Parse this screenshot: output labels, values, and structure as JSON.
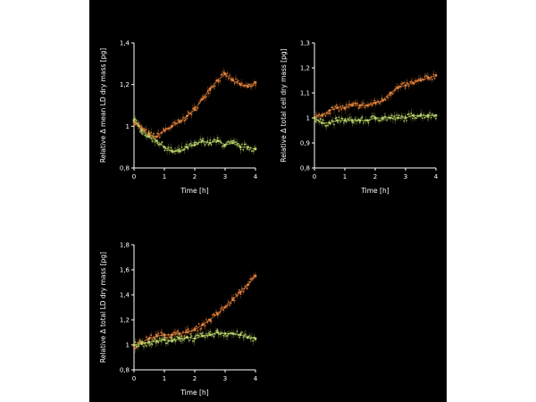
{
  "colors": {
    "background": "#000000",
    "foreground": "#ffffff",
    "treated": "#e8843c",
    "control": "#b8d468"
  },
  "chart_data": [
    {
      "type": "line",
      "title": "",
      "xlabel": "Time [h]",
      "ylabel": "Relative Δ mean LD dry mass  [pg]",
      "xlim": [
        0,
        4
      ],
      "ylim": [
        0.8,
        1.4
      ],
      "xticks": [
        "0",
        "1",
        "2",
        "3",
        "4"
      ],
      "yticks": [
        "0,8",
        "1",
        "1,2",
        "1,4"
      ],
      "ytick_values": [
        0.8,
        1.0,
        1.2,
        1.4
      ],
      "x": [
        0,
        0.25,
        0.5,
        0.75,
        1.0,
        1.25,
        1.5,
        1.75,
        2.0,
        2.25,
        2.5,
        2.75,
        3.0,
        3.25,
        3.5,
        3.75,
        4.0
      ],
      "series": [
        {
          "color_key": "treated",
          "values": [
            1.02,
            0.99,
            0.96,
            0.95,
            0.98,
            1.0,
            1.02,
            1.05,
            1.08,
            1.13,
            1.18,
            1.22,
            1.25,
            1.22,
            1.2,
            1.19,
            1.21
          ]
        },
        {
          "color_key": "control",
          "values": [
            1.03,
            0.98,
            0.95,
            0.93,
            0.9,
            0.88,
            0.88,
            0.9,
            0.91,
            0.93,
            0.92,
            0.93,
            0.91,
            0.92,
            0.9,
            0.9,
            0.89
          ]
        }
      ]
    },
    {
      "type": "line",
      "title": "",
      "xlabel": "Time [h]",
      "ylabel": "Relative Δ total cell dry mass  [pg]",
      "xlim": [
        0,
        4
      ],
      "ylim": [
        0.8,
        1.3
      ],
      "xticks": [
        "0",
        "1",
        "2",
        "3",
        "4"
      ],
      "yticks": [
        "0,8",
        "0,9",
        "1",
        "1,1",
        "1,2",
        "1,3"
      ],
      "ytick_values": [
        0.8,
        0.9,
        1.0,
        1.1,
        1.2,
        1.3
      ],
      "x": [
        0,
        0.25,
        0.5,
        0.75,
        1.0,
        1.25,
        1.5,
        1.75,
        2.0,
        2.25,
        2.5,
        2.75,
        3.0,
        3.25,
        3.5,
        3.75,
        4.0
      ],
      "series": [
        {
          "color_key": "treated",
          "values": [
            1.0,
            1.01,
            1.03,
            1.04,
            1.04,
            1.05,
            1.05,
            1.05,
            1.06,
            1.07,
            1.1,
            1.12,
            1.13,
            1.14,
            1.15,
            1.16,
            1.17
          ]
        },
        {
          "color_key": "control",
          "values": [
            1.0,
            0.98,
            0.98,
            0.99,
            0.99,
            0.99,
            0.99,
            0.99,
            1.0,
            1.0,
            1.0,
            1.0,
            1.0,
            1.01,
            1.01,
            1.01,
            1.01
          ]
        }
      ]
    },
    {
      "type": "line",
      "title": "",
      "xlabel": "Time [h]",
      "ylabel": "Relative Δ total LD dry mass  [pg]",
      "xlim": [
        0,
        4
      ],
      "ylim": [
        0.8,
        1.8
      ],
      "xticks": [
        "0",
        "1",
        "2",
        "3",
        "4"
      ],
      "yticks": [
        "0,8",
        "1",
        "1,2",
        "1,4",
        "1,6",
        "1,8"
      ],
      "ytick_values": [
        0.8,
        1.0,
        1.2,
        1.4,
        1.6,
        1.8
      ],
      "x": [
        0,
        0.25,
        0.5,
        0.75,
        1.0,
        1.25,
        1.5,
        1.75,
        2.0,
        2.25,
        2.5,
        2.75,
        3.0,
        3.25,
        3.5,
        3.75,
        4.0
      ],
      "series": [
        {
          "color_key": "treated",
          "values": [
            0.99,
            1.02,
            1.05,
            1.07,
            1.08,
            1.08,
            1.09,
            1.1,
            1.12,
            1.16,
            1.2,
            1.25,
            1.3,
            1.36,
            1.42,
            1.48,
            1.55
          ]
        },
        {
          "color_key": "control",
          "values": [
            1.0,
            1.01,
            1.02,
            1.03,
            1.04,
            1.03,
            1.05,
            1.06,
            1.05,
            1.07,
            1.08,
            1.1,
            1.09,
            1.09,
            1.08,
            1.06,
            1.05
          ]
        }
      ]
    }
  ]
}
